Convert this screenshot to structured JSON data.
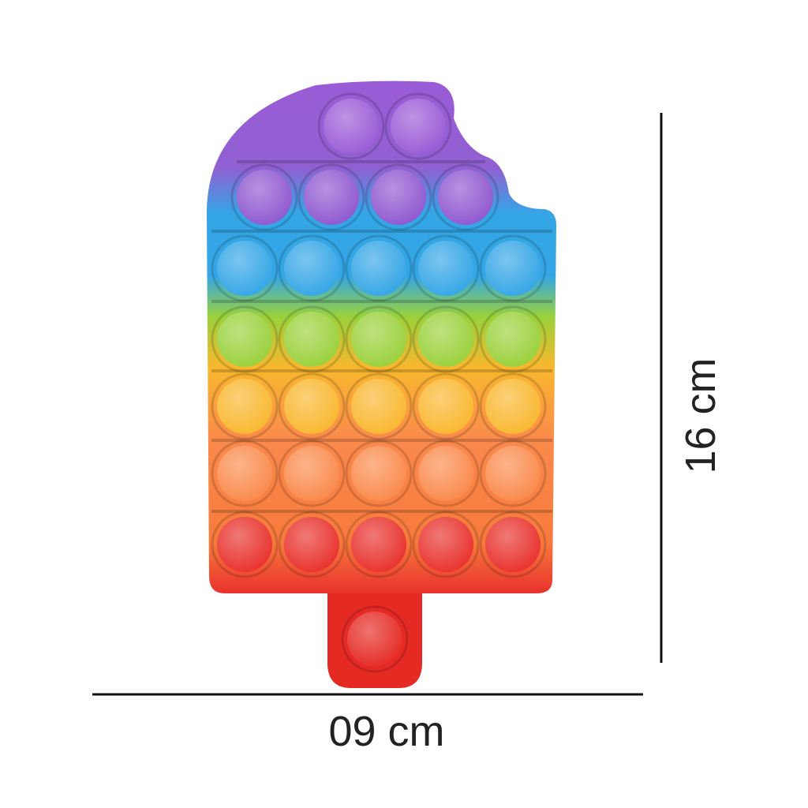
{
  "product": {
    "row_colors": [
      "#9b5bd6",
      "#8f58d0",
      "#34a6e6",
      "#9ad13b",
      "#f9b72e",
      "#fa8a4c",
      "#e8312c"
    ],
    "stick_color": "#e52a24"
  },
  "dimensions": {
    "width_label": "09 cm",
    "height_label": "16 cm"
  }
}
